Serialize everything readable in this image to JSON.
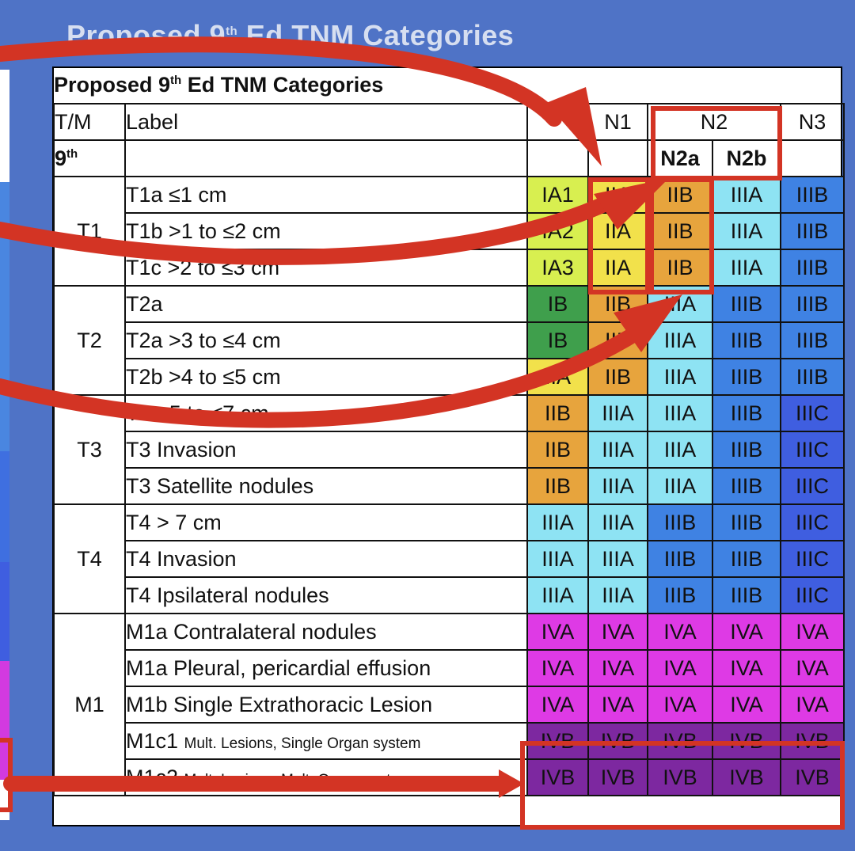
{
  "background_title": "Proposed 9th Ed TNM Categories",
  "title": "Proposed 9th Ed TNM Categories",
  "headers": {
    "tm": "T/M",
    "label": "Label",
    "edition": "9th",
    "n0": "",
    "n1": "N1",
    "n2": "N2",
    "n2a": "N2a",
    "n2b": "N2b",
    "n3": "N3"
  },
  "rows": [
    {
      "group": "T1",
      "label": "T1a ≤1 cm",
      "small": "",
      "stages": [
        "IA1",
        "IIA",
        "IIB",
        "IIIA",
        "IIIB"
      ]
    },
    {
      "group": "",
      "label": "T1b >1 to ≤2 cm",
      "small": "",
      "stages": [
        "IA2",
        "IIA",
        "IIB",
        "IIIA",
        "IIIB"
      ]
    },
    {
      "group": "",
      "label": "T1c >2 to ≤3 cm",
      "small": "",
      "stages": [
        "IA3",
        "IIA",
        "IIB",
        "IIIA",
        "IIIB"
      ]
    },
    {
      "group": "T2",
      "label": "T2a",
      "small": "",
      "stages": [
        "IB",
        "IIB",
        "IIIA",
        "IIIB",
        "IIIB"
      ]
    },
    {
      "group": "",
      "label": "T2a >3 to ≤4 cm",
      "small": "",
      "stages": [
        "IB",
        "IIB",
        "IIIA",
        "IIIB",
        "IIIB"
      ]
    },
    {
      "group": "",
      "label": "T2b >4 to ≤5 cm",
      "small": "",
      "stages": [
        "IIA",
        "IIB",
        "IIIA",
        "IIIB",
        "IIIB"
      ]
    },
    {
      "group": "T3",
      "label": "T3 >5 to ≤7 cm",
      "small": "",
      "stages": [
        "IIB",
        "IIIA",
        "IIIA",
        "IIIB",
        "IIIC"
      ]
    },
    {
      "group": "",
      "label": "T3 Invasion",
      "small": "",
      "stages": [
        "IIB",
        "IIIA",
        "IIIA",
        "IIIB",
        "IIIC"
      ]
    },
    {
      "group": "",
      "label": "T3 Satellite nodules",
      "small": "",
      "stages": [
        "IIB",
        "IIIA",
        "IIIA",
        "IIIB",
        "IIIC"
      ]
    },
    {
      "group": "T4",
      "label": "T4 > 7 cm",
      "small": "",
      "stages": [
        "IIIA",
        "IIIA",
        "IIIB",
        "IIIB",
        "IIIC"
      ]
    },
    {
      "group": "",
      "label": "T4 Invasion",
      "small": "",
      "stages": [
        "IIIA",
        "IIIA",
        "IIIB",
        "IIIB",
        "IIIC"
      ]
    },
    {
      "group": "",
      "label": "T4 Ipsilateral nodules",
      "small": "",
      "stages": [
        "IIIA",
        "IIIA",
        "IIIB",
        "IIIB",
        "IIIC"
      ]
    },
    {
      "group": "M1",
      "label": "M1a Contralateral nodules",
      "small": "",
      "stages": [
        "IVA",
        "IVA",
        "IVA",
        "IVA",
        "IVA"
      ]
    },
    {
      "group": "",
      "label": "M1a Pleural, pericardial effusion",
      "small": "",
      "stages": [
        "IVA",
        "IVA",
        "IVA",
        "IVA",
        "IVA"
      ]
    },
    {
      "group": "",
      "label": "M1b Single Extrathoracic Lesion",
      "small": "",
      "stages": [
        "IVA",
        "IVA",
        "IVA",
        "IVA",
        "IVA"
      ]
    },
    {
      "group": "",
      "label": "M1c1",
      "small": "Mult. Lesions, Single Organ system",
      "stages": [
        "IVB",
        "IVB",
        "IVB",
        "IVB",
        "IVB"
      ]
    },
    {
      "group": "",
      "label": "M1c2",
      "small": "Mult. Lesions, Mult. Organ systems",
      "stages": [
        "IVB",
        "IVB",
        "IVB",
        "IVB",
        "IVB"
      ]
    }
  ],
  "colors": {
    "background": "#4f73c6",
    "highlight": "#d33424",
    "IA": "#d8ef50",
    "IB": "#3f9f4c",
    "IIA": "#f2e14b",
    "IIB": "#e7a43d",
    "IIIA": "#8ee3f3",
    "IIIB": "#3f82e3",
    "IIIC": "#3f5ee0",
    "IVA": "#de3ae5",
    "IVB": "#7d28a0"
  }
}
